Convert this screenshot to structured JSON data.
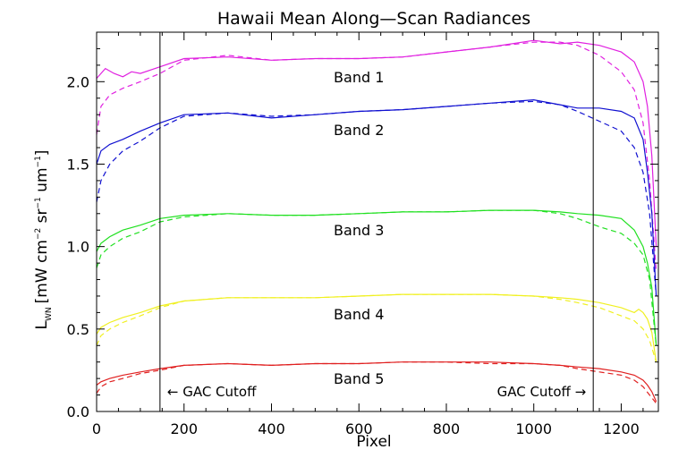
{
  "chart_data": {
    "type": "line",
    "title": "Hawaii Mean Along—Scan Radiances",
    "xlabel": "Pixel",
    "ylabel": {
      "symbol": "L",
      "symbol_sub": "WN",
      "unit_prefix": "[mW cm",
      "exp1": "−2",
      "unit_mid1": " sr",
      "exp2": "−1",
      "unit_mid2": " um",
      "exp3": "−1",
      "unit_suffix": "]"
    },
    "xlim": [
      0,
      1285
    ],
    "ylim": [
      0,
      2.3
    ],
    "x_ticks": [
      0,
      200,
      400,
      600,
      800,
      1000,
      1200
    ],
    "x_tick_labels": [
      "0",
      "200",
      "400",
      "600",
      "800",
      "1000",
      "1200"
    ],
    "y_ticks": [
      0,
      0.5,
      1.0,
      1.5,
      2.0
    ],
    "y_tick_labels": [
      "0.0",
      "0.5",
      "1.0",
      "1.5",
      "2.0"
    ],
    "x_minor_step": 50,
    "y_minor_step": 0.1,
    "grid": false,
    "cutoffs": [
      {
        "x": 145,
        "label": "← GAC Cutoff"
      },
      {
        "x": 1136,
        "label": "GAC Cutoff →"
      }
    ],
    "series": [
      {
        "name": "Band 1",
        "label_x": 600,
        "label_y": 2.03,
        "color": "#e020e0",
        "solid": {
          "x": [
            0,
            20,
            40,
            60,
            80,
            100,
            145,
            200,
            300,
            400,
            500,
            600,
            700,
            800,
            900,
            1000,
            1060,
            1100,
            1150,
            1200,
            1230,
            1250,
            1260,
            1270,
            1280
          ],
          "y": [
            2.02,
            2.08,
            2.05,
            2.03,
            2.06,
            2.05,
            2.09,
            2.14,
            2.15,
            2.13,
            2.14,
            2.14,
            2.15,
            2.18,
            2.21,
            2.25,
            2.23,
            2.24,
            2.22,
            2.18,
            2.12,
            2.0,
            1.85,
            1.55,
            1.0
          ]
        },
        "dashed": {
          "x": [
            0,
            10,
            30,
            60,
            100,
            145,
            200,
            300,
            400,
            500,
            600,
            700,
            800,
            900,
            1000,
            1060,
            1100,
            1150,
            1200,
            1230,
            1250,
            1265,
            1280
          ],
          "y": [
            1.68,
            1.85,
            1.92,
            1.96,
            2.0,
            2.05,
            2.13,
            2.16,
            2.13,
            2.14,
            2.14,
            2.15,
            2.18,
            2.21,
            2.24,
            2.24,
            2.22,
            2.16,
            2.06,
            1.95,
            1.75,
            1.4,
            0.85
          ]
        }
      },
      {
        "name": "Band 2",
        "label_x": 600,
        "label_y": 1.71,
        "color": "#1010d0",
        "solid": {
          "x": [
            0,
            10,
            30,
            60,
            100,
            145,
            200,
            300,
            400,
            500,
            600,
            700,
            800,
            900,
            1000,
            1060,
            1100,
            1150,
            1200,
            1230,
            1250,
            1260,
            1270,
            1280
          ],
          "y": [
            1.5,
            1.58,
            1.62,
            1.65,
            1.7,
            1.75,
            1.8,
            1.81,
            1.78,
            1.8,
            1.82,
            1.83,
            1.85,
            1.87,
            1.89,
            1.86,
            1.84,
            1.84,
            1.82,
            1.78,
            1.65,
            1.45,
            1.2,
            0.7
          ]
        },
        "dashed": {
          "x": [
            0,
            10,
            30,
            60,
            100,
            145,
            200,
            300,
            400,
            500,
            600,
            700,
            800,
            900,
            1000,
            1060,
            1100,
            1150,
            1200,
            1230,
            1250,
            1265,
            1280
          ],
          "y": [
            1.27,
            1.4,
            1.5,
            1.58,
            1.64,
            1.72,
            1.79,
            1.81,
            1.79,
            1.8,
            1.82,
            1.83,
            1.85,
            1.87,
            1.88,
            1.86,
            1.82,
            1.76,
            1.7,
            1.6,
            1.45,
            1.2,
            0.7
          ]
        }
      },
      {
        "name": "Band 3",
        "label_x": 600,
        "label_y": 1.1,
        "color": "#20e020",
        "solid": {
          "x": [
            0,
            10,
            30,
            60,
            100,
            145,
            200,
            300,
            400,
            500,
            600,
            700,
            800,
            900,
            1000,
            1060,
            1100,
            1150,
            1200,
            1230,
            1250,
            1260,
            1270,
            1280
          ],
          "y": [
            0.97,
            1.02,
            1.06,
            1.1,
            1.13,
            1.17,
            1.19,
            1.2,
            1.19,
            1.19,
            1.2,
            1.21,
            1.21,
            1.22,
            1.22,
            1.21,
            1.2,
            1.19,
            1.17,
            1.1,
            1.0,
            0.9,
            0.75,
            0.4
          ]
        },
        "dashed": {
          "x": [
            0,
            10,
            30,
            60,
            100,
            145,
            200,
            300,
            400,
            500,
            600,
            700,
            800,
            900,
            1000,
            1060,
            1100,
            1150,
            1200,
            1230,
            1250,
            1265,
            1280
          ],
          "y": [
            0.87,
            0.95,
            1.0,
            1.05,
            1.09,
            1.15,
            1.18,
            1.2,
            1.19,
            1.19,
            1.2,
            1.21,
            1.21,
            1.22,
            1.22,
            1.2,
            1.17,
            1.12,
            1.08,
            1.02,
            0.95,
            0.8,
            0.4
          ]
        }
      },
      {
        "name": "Band 4",
        "label_x": 600,
        "label_y": 0.59,
        "color": "#f0f020",
        "solid": {
          "x": [
            0,
            10,
            30,
            60,
            100,
            145,
            200,
            300,
            400,
            500,
            600,
            700,
            800,
            900,
            1000,
            1060,
            1100,
            1150,
            1200,
            1230,
            1240,
            1250,
            1260,
            1270,
            1280
          ],
          "y": [
            0.47,
            0.51,
            0.54,
            0.57,
            0.6,
            0.64,
            0.67,
            0.69,
            0.69,
            0.69,
            0.7,
            0.71,
            0.71,
            0.71,
            0.7,
            0.69,
            0.68,
            0.66,
            0.63,
            0.6,
            0.62,
            0.6,
            0.56,
            0.48,
            0.3
          ]
        },
        "dashed": {
          "x": [
            0,
            10,
            30,
            60,
            100,
            145,
            200,
            300,
            400,
            500,
            600,
            700,
            800,
            900,
            1000,
            1060,
            1100,
            1150,
            1200,
            1230,
            1250,
            1265,
            1280
          ],
          "y": [
            0.4,
            0.46,
            0.5,
            0.54,
            0.58,
            0.63,
            0.67,
            0.69,
            0.69,
            0.69,
            0.7,
            0.71,
            0.71,
            0.71,
            0.7,
            0.68,
            0.66,
            0.63,
            0.58,
            0.55,
            0.5,
            0.43,
            0.3
          ]
        }
      },
      {
        "name": "Band 5",
        "label_x": 600,
        "label_y": 0.2,
        "color": "#e02020",
        "solid": {
          "x": [
            0,
            10,
            30,
            60,
            100,
            145,
            200,
            300,
            400,
            500,
            600,
            700,
            800,
            900,
            1000,
            1060,
            1100,
            1150,
            1200,
            1230,
            1250,
            1260,
            1270,
            1280
          ],
          "y": [
            0.16,
            0.18,
            0.2,
            0.22,
            0.24,
            0.26,
            0.28,
            0.29,
            0.28,
            0.29,
            0.29,
            0.3,
            0.3,
            0.3,
            0.29,
            0.28,
            0.27,
            0.26,
            0.24,
            0.22,
            0.19,
            0.16,
            0.12,
            0.06
          ]
        },
        "dashed": {
          "x": [
            0,
            10,
            30,
            60,
            100,
            145,
            200,
            300,
            400,
            500,
            600,
            700,
            800,
            900,
            1000,
            1060,
            1100,
            1150,
            1200,
            1230,
            1250,
            1265,
            1280
          ],
          "y": [
            0.11,
            0.15,
            0.18,
            0.2,
            0.23,
            0.25,
            0.28,
            0.29,
            0.28,
            0.29,
            0.29,
            0.3,
            0.3,
            0.29,
            0.29,
            0.28,
            0.26,
            0.24,
            0.22,
            0.19,
            0.15,
            0.1,
            0.05
          ]
        }
      }
    ]
  }
}
